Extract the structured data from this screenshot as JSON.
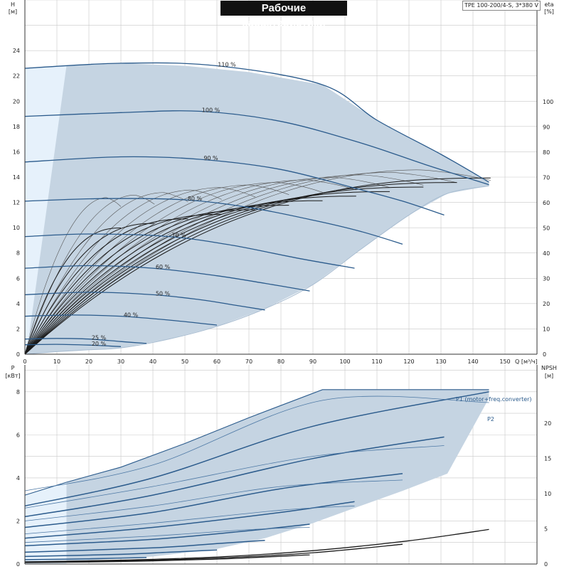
{
  "title": "Рабочие характеристики",
  "model": "TPE 100-200/4-S, 3*380 V",
  "colors": {
    "region_fill": "#c5d4e2",
    "region_edge": "#2b5b8c",
    "light_fill": "#e6f1fb",
    "curve_blue": "#2b5b8c",
    "curve_black": "#1a1a1a",
    "curve_gray": "#555555"
  },
  "chart_data": [
    {
      "type": "line",
      "name_panel": "top",
      "y_left_label_1": "H",
      "y_left_label_2": "[м]",
      "y_right_label_1": "eta",
      "y_right_label_2": "[%]",
      "x_label": "Q [м³/ч]",
      "xlim": [
        0,
        150
      ],
      "ylim": [
        0,
        24
      ],
      "eta_lim": [
        0,
        100
      ],
      "x_ticks": [
        0,
        10,
        20,
        30,
        40,
        50,
        60,
        70,
        80,
        90,
        100,
        110,
        120,
        130,
        140,
        150
      ],
      "y_ticks": [
        0,
        2,
        4,
        6,
        8,
        10,
        12,
        14,
        16,
        18,
        20,
        22,
        24
      ],
      "eta_ticks": [
        0,
        10,
        20,
        30,
        40,
        50,
        60,
        70,
        80,
        90,
        100
      ],
      "head_region": {
        "upper": [
          [
            0,
            22.6
          ],
          [
            13,
            22.8
          ],
          [
            30,
            23.0
          ],
          [
            50,
            22.8
          ],
          [
            70,
            22.3
          ],
          [
            93,
            21.3
          ],
          [
            110,
            18.5
          ],
          [
            130,
            15.8
          ],
          [
            145,
            13.6
          ]
        ],
        "lower": [
          [
            0,
            0
          ],
          [
            10,
            0.2
          ],
          [
            20,
            0.35
          ],
          [
            30,
            0.5
          ],
          [
            45,
            1.2
          ],
          [
            60,
            2.2
          ],
          [
            75,
            3.6
          ],
          [
            90,
            5.5
          ],
          [
            105,
            8.3
          ],
          [
            120,
            11.0
          ],
          [
            132,
            12.7
          ],
          [
            145,
            13.3
          ]
        ]
      },
      "head_curves": [
        {
          "label": "110 %",
          "points": [
            [
              0,
              22.6
            ],
            [
              30,
              23.0
            ],
            [
              60,
              22.8
            ],
            [
              93,
              21.3
            ],
            [
              110,
              18.5
            ],
            [
              130,
              15.8
            ],
            [
              145,
              13.6
            ]
          ]
        },
        {
          "label": "100 %",
          "points": [
            [
              0,
              18.8
            ],
            [
              30,
              19.1
            ],
            [
              55,
              19.2
            ],
            [
              80,
              18.4
            ],
            [
              105,
              16.7
            ],
            [
              125,
              15.0
            ],
            [
              145,
              13.4
            ]
          ]
        },
        {
          "label": "90 %",
          "points": [
            [
              0,
              15.2
            ],
            [
              30,
              15.6
            ],
            [
              55,
              15.4
            ],
            [
              80,
              14.6
            ],
            [
              105,
              13.0
            ],
            [
              118,
              12.1
            ],
            [
              131,
              11.0
            ]
          ]
        },
        {
          "label": "80 %",
          "points": [
            [
              0,
              12.1
            ],
            [
              25,
              12.3
            ],
            [
              50,
              12.2
            ],
            [
              70,
              11.6
            ],
            [
              90,
              10.6
            ],
            [
              105,
              9.7
            ],
            [
              118,
              8.7
            ]
          ]
        },
        {
          "label": "70 %",
          "points": [
            [
              0,
              9.3
            ],
            [
              20,
              9.5
            ],
            [
              45,
              9.3
            ],
            [
              65,
              8.6
            ],
            [
              85,
              7.6
            ],
            [
              103,
              6.8
            ]
          ]
        },
        {
          "label": "60 %",
          "points": [
            [
              0,
              6.8
            ],
            [
              20,
              7.0
            ],
            [
              40,
              6.8
            ],
            [
              60,
              6.2
            ],
            [
              75,
              5.6
            ],
            [
              89,
              5.0
            ]
          ]
        },
        {
          "label": "50 %",
          "points": [
            [
              0,
              4.7
            ],
            [
              20,
              4.9
            ],
            [
              40,
              4.7
            ],
            [
              55,
              4.3
            ],
            [
              65,
              3.9
            ],
            [
              75,
              3.5
            ]
          ]
        },
        {
          "label": "40 %",
          "points": [
            [
              0,
              3.0
            ],
            [
              15,
              3.1
            ],
            [
              30,
              3.0
            ],
            [
              45,
              2.7
            ],
            [
              60,
              2.3
            ]
          ]
        },
        {
          "label": "25 %",
          "points": [
            [
              0,
              1.2
            ],
            [
              10,
              1.25
            ],
            [
              20,
              1.2
            ],
            [
              30,
              1.0
            ],
            [
              38,
              0.85
            ]
          ]
        },
        {
          "label": "20 %",
          "points": [
            [
              0,
              0.75
            ],
            [
              10,
              0.78
            ],
            [
              20,
              0.72
            ],
            [
              30,
              0.6
            ]
          ]
        }
      ],
      "eta_curves_count": 12
    },
    {
      "type": "line",
      "name_panel": "bottom",
      "y_left_label_1": "P",
      "y_left_label_2": "[кВт]",
      "y_right_label_1": "NPSH",
      "y_right_label_2": "[м]",
      "xlim": [
        0,
        150
      ],
      "ylim": [
        0,
        9
      ],
      "npsh_lim": [
        0,
        22.5
      ],
      "y_ticks": [
        0,
        2,
        4,
        6,
        8
      ],
      "npsh_ticks": [
        0,
        5,
        10,
        15,
        20
      ],
      "power_region": {
        "upper": [
          [
            0,
            3.2
          ],
          [
            13,
            3.8
          ],
          [
            30,
            4.5
          ],
          [
            50,
            5.6
          ],
          [
            70,
            6.8
          ],
          [
            93,
            8.1
          ],
          [
            145,
            8.1
          ]
        ],
        "lower": [
          [
            0,
            0
          ],
          [
            40,
            0.35
          ],
          [
            60,
            0.7
          ],
          [
            75,
            1.2
          ],
          [
            90,
            1.9
          ],
          [
            103,
            2.6
          ],
          [
            118,
            3.4
          ],
          [
            132,
            4.2
          ],
          [
            145,
            7.7
          ]
        ]
      },
      "series_labels": [
        "P1 (motor+freq.converter)",
        "P2"
      ],
      "p1_curves": [
        [
          [
            0,
            2.7
          ],
          [
            40,
            4.0
          ],
          [
            90,
            6.4
          ],
          [
            145,
            8.0
          ]
        ],
        [
          [
            0,
            2.2
          ],
          [
            40,
            3.2
          ],
          [
            90,
            4.9
          ],
          [
            131,
            5.9
          ]
        ],
        [
          [
            0,
            1.7
          ],
          [
            40,
            2.4
          ],
          [
            80,
            3.5
          ],
          [
            118,
            4.2
          ]
        ],
        [
          [
            0,
            1.2
          ],
          [
            40,
            1.7
          ],
          [
            80,
            2.4
          ],
          [
            103,
            2.9
          ]
        ],
        [
          [
            0,
            0.85
          ],
          [
            40,
            1.15
          ],
          [
            70,
            1.55
          ],
          [
            89,
            1.85
          ]
        ],
        [
          [
            0,
            0.55
          ],
          [
            40,
            0.75
          ],
          [
            60,
            0.95
          ],
          [
            75,
            1.1
          ]
        ],
        [
          [
            0,
            0.35
          ],
          [
            30,
            0.45
          ],
          [
            45,
            0.55
          ],
          [
            60,
            0.65
          ]
        ],
        [
          [
            0,
            0.2
          ],
          [
            20,
            0.24
          ],
          [
            38,
            0.3
          ]
        ],
        [
          [
            0,
            0.1
          ],
          [
            15,
            0.12
          ],
          [
            30,
            0.15
          ]
        ]
      ],
      "p2_curves": [
        [
          [
            0,
            3.4
          ],
          [
            40,
            4.6
          ],
          [
            93,
            7.6
          ],
          [
            145,
            7.5
          ]
        ],
        [
          [
            0,
            2.6
          ],
          [
            40,
            3.6
          ],
          [
            90,
            5.0
          ],
          [
            131,
            5.5
          ]
        ],
        [
          [
            0,
            2.0
          ],
          [
            40,
            2.7
          ],
          [
            80,
            3.6
          ],
          [
            118,
            3.9
          ]
        ],
        [
          [
            0,
            1.4
          ],
          [
            40,
            1.9
          ],
          [
            80,
            2.5
          ],
          [
            103,
            2.7
          ]
        ],
        [
          [
            0,
            1.0
          ],
          [
            40,
            1.3
          ],
          [
            70,
            1.6
          ],
          [
            89,
            1.7
          ]
        ]
      ],
      "npsh_curves": [
        [
          [
            0,
            0.3
          ],
          [
            30,
            0.55
          ],
          [
            60,
            1.0
          ],
          [
            90,
            1.9
          ],
          [
            120,
            3.3
          ],
          [
            145,
            4.9
          ]
        ],
        [
          [
            0,
            0.25
          ],
          [
            30,
            0.45
          ],
          [
            60,
            0.85
          ],
          [
            90,
            1.6
          ],
          [
            118,
            2.8
          ]
        ],
        [
          [
            0,
            0.2
          ],
          [
            30,
            0.35
          ],
          [
            60,
            0.7
          ],
          [
            89,
            1.3
          ]
        ]
      ]
    }
  ]
}
